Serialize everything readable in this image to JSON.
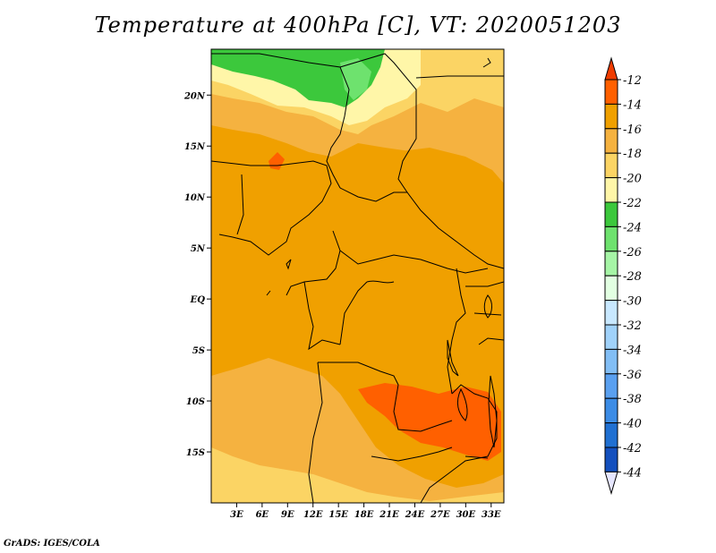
{
  "title": "Temperature at 400hPa [C], VT: 2020051203",
  "footer": "GrADS: IGES/COLA",
  "map": {
    "lon_range": [
      0,
      34.5
    ],
    "lat_range": [
      -20,
      24.5
    ],
    "x_ticks": [
      "3E",
      "6E",
      "9E",
      "12E",
      "15E",
      "18E",
      "21E",
      "24E",
      "27E",
      "30E",
      "33E"
    ],
    "y_ticks": [
      "20N",
      "15N",
      "10N",
      "5N",
      "EQ",
      "5S",
      "10S",
      "15S"
    ],
    "background_color": "#f0a000"
  },
  "colorbar": {
    "labels": [
      "-12",
      "-14",
      "-16",
      "-18",
      "-20",
      "-22",
      "-24",
      "-26",
      "-28",
      "-30",
      "-32",
      "-34",
      "-36",
      "-38",
      "-40",
      "-42",
      "-44"
    ],
    "colors": [
      "#ff6000",
      "#f0a000",
      "#f5b240",
      "#fbd464",
      "#fff6a8",
      "#3cc83c",
      "#6ee26e",
      "#a6f5a6",
      "#e2ffe2",
      "#c8e8ff",
      "#a0d2fa",
      "#82bef5",
      "#5aa0f0",
      "#3c8ce6",
      "#2070d2",
      "#1450be",
      "#0a1e8c"
    ],
    "top_arrow_color": "#f03c00",
    "bottom_arrow_color": "#e6e6ff"
  }
}
